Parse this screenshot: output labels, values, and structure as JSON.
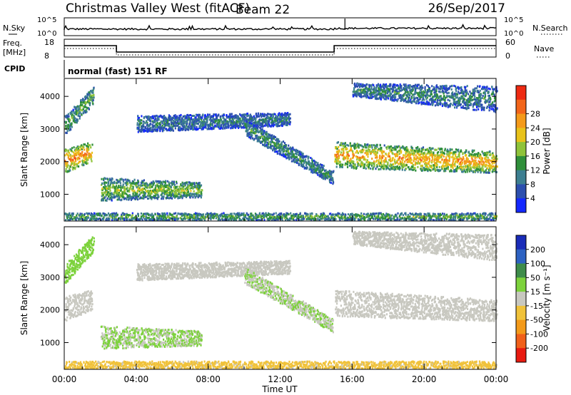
{
  "header": {
    "site": "Christmas Valley West (fitACF)",
    "beam": "Beam 22",
    "date": "26/Sep/2017"
  },
  "noise_panel": {
    "left_label": "N.Sky",
    "right_label": "N.Search",
    "left_ticks": [
      "10^5",
      "10^0"
    ],
    "right_ticks": [
      "10^5",
      "10^0"
    ]
  },
  "freq_panel": {
    "left_label_1": "Freq.",
    "left_label_2": "[MHz]",
    "right_label": "Nave",
    "left_ticks": [
      "18",
      "8"
    ],
    "right_ticks": [
      "60",
      "0"
    ],
    "freq_steps": [
      {
        "t0": 0.0,
        "t1": 2.9,
        "value": 15
      },
      {
        "t0": 2.9,
        "t1": 15.0,
        "value": 10.5
      },
      {
        "t0": 15.0,
        "t1": 24.0,
        "value": 15
      }
    ]
  },
  "cpid": {
    "label": "CPID",
    "text": "normal (fast) 151 RF"
  },
  "x_axis": {
    "label": "Time UT",
    "ticks": [
      "00:00",
      "04:00",
      "08:00",
      "12:00",
      "16:00",
      "20:00",
      "00:00"
    ],
    "tick_hours": [
      0,
      4,
      8,
      12,
      16,
      20,
      24
    ],
    "range": [
      0,
      24
    ]
  },
  "power_panel": {
    "ylabel": "Slant Range [km]",
    "yticks": [
      "1000",
      "2000",
      "3000",
      "4000"
    ],
    "ytick_values": [
      1000,
      2000,
      3000,
      4000
    ],
    "ylim": [
      180,
      4550
    ],
    "colorbar_label": "Power [dB]",
    "colorbar_ticks": [
      "4",
      "8",
      "12",
      "16",
      "20",
      "24",
      "28"
    ],
    "colorbar_colors": [
      "#1428ff",
      "#2c4fae",
      "#3d7f91",
      "#2f8f3a",
      "#8fc33a",
      "#e8c21a",
      "#f49a1a",
      "#f2651a",
      "#ee2a12"
    ]
  },
  "velocity_panel": {
    "ylabel": "Slant Range [km]",
    "yticks": [
      "1000",
      "2000",
      "3000",
      "4000"
    ],
    "ytick_values": [
      1000,
      2000,
      3000,
      4000
    ],
    "ylim": [
      180,
      4550
    ],
    "colorbar_label": "Velocity [m s⁻¹]",
    "colorbar_ticks": [
      "200",
      "100",
      "50",
      "15",
      "-15",
      "-50",
      "-100",
      "-200"
    ],
    "colorbar_colors": [
      "#1a2cb8",
      "#2d62c2",
      "#3e8c4a",
      "#7dd23c",
      "#c8c8c0",
      "#f0c23a",
      "#f39a1a",
      "#f0601a",
      "#e81a10"
    ]
  },
  "chart_data": {
    "type": "heatmap",
    "x_range": [
      0,
      24
    ],
    "y_range": [
      180,
      4550
    ],
    "power_regions": [
      {
        "name": "early-band",
        "t0": 0.0,
        "t1": 1.5,
        "r_start": [
          1650,
          2400
        ],
        "r_end": [
          2000,
          2600
        ],
        "level": 22
      },
      {
        "name": "early-high",
        "t0": 0.0,
        "t1": 1.6,
        "r_start": [
          2800,
          3400
        ],
        "r_end": [
          3800,
          4300
        ],
        "level": 12
      },
      {
        "name": "mid-low-band",
        "t0": 2.0,
        "t1": 7.6,
        "r_start": [
          800,
          1500
        ],
        "r_end": [
          900,
          1350
        ],
        "level": 14
      },
      {
        "name": "midday-arc",
        "t0": 4.0,
        "t1": 12.5,
        "r_start": [
          2900,
          3400
        ],
        "r_end": [
          3100,
          3500
        ],
        "level": 8
      },
      {
        "name": "afternoon-descend",
        "t0": 10.0,
        "t1": 14.9,
        "r_start": [
          2800,
          3300
        ],
        "r_end": [
          1300,
          1700
        ],
        "level": 10
      },
      {
        "name": "evening-band",
        "t0": 15.0,
        "t1": 24.0,
        "r_start": [
          1800,
          2600
        ],
        "r_end": [
          1650,
          2300
        ],
        "level": 20
      },
      {
        "name": "evening-high",
        "t0": 16.0,
        "t1": 24.0,
        "r_start": [
          4000,
          4400
        ],
        "r_end": [
          3500,
          4300
        ],
        "level": 9
      },
      {
        "name": "near-range",
        "t0": 0.0,
        "t1": 24.0,
        "r_start": [
          200,
          420
        ],
        "r_end": [
          200,
          420
        ],
        "level": 12
      }
    ],
    "velocity_regions": [
      {
        "name": "early-band",
        "t0": 0.0,
        "t1": 1.5,
        "r_start": [
          1650,
          2400
        ],
        "r_end": [
          2000,
          2600
        ],
        "value": 0
      },
      {
        "name": "early-high",
        "t0": 0.0,
        "t1": 1.6,
        "r_start": [
          2800,
          3400
        ],
        "r_end": [
          3800,
          4300
        ],
        "value": 60
      },
      {
        "name": "mid-low-band",
        "t0": 2.0,
        "t1": 7.6,
        "r_start": [
          800,
          1500
        ],
        "r_end": [
          900,
          1350
        ],
        "value": 30
      },
      {
        "name": "midday-arc",
        "t0": 4.0,
        "t1": 12.5,
        "r_start": [
          2900,
          3400
        ],
        "r_end": [
          3100,
          3500
        ],
        "value": 0
      },
      {
        "name": "afternoon-descend",
        "t0": 10.0,
        "t1": 14.9,
        "r_start": [
          2800,
          3300
        ],
        "r_end": [
          1300,
          1700
        ],
        "value": 25
      },
      {
        "name": "evening-band",
        "t0": 15.0,
        "t1": 24.0,
        "r_start": [
          1800,
          2600
        ],
        "r_end": [
          1650,
          2300
        ],
        "value": 0
      },
      {
        "name": "evening-high",
        "t0": 16.0,
        "t1": 24.0,
        "r_start": [
          4000,
          4400
        ],
        "r_end": [
          3500,
          4300
        ],
        "value": 0
      },
      {
        "name": "near-range",
        "t0": 0.0,
        "t1": 24.0,
        "r_start": [
          200,
          420
        ],
        "r_end": [
          200,
          420
        ],
        "value": -40
      }
    ]
  }
}
